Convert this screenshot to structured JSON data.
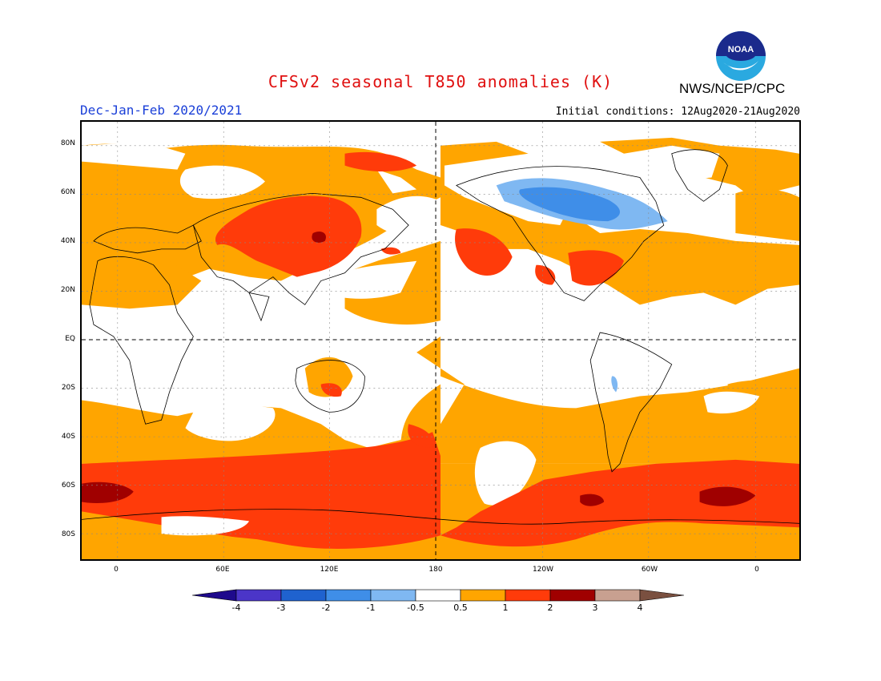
{
  "title": "CFSv2 seasonal T850 anomalies (K)",
  "agency": "NWS/NCEP/CPC",
  "logo_text": "NOAA",
  "season": "Dec-Jan-Feb 2020/2021",
  "initial_conditions": "Initial conditions: 12Aug2020-21Aug2020",
  "lat_labels": [
    "80N",
    "60N",
    "40N",
    "20N",
    "EQ",
    "20S",
    "40S",
    "60S",
    "80S"
  ],
  "lon_labels": [
    "0",
    "60E",
    "120E",
    "180",
    "120W",
    "60W",
    "0"
  ],
  "colorbar": {
    "labels": [
      "-4",
      "-3",
      "-2",
      "-1",
      "-0.5",
      "0.5",
      "1",
      "2",
      "3",
      "4"
    ],
    "colors": [
      "#1e0a8c",
      "#4b35c8",
      "#1f62cf",
      "#3f8ee8",
      "#7fb8f2",
      "#ffffff",
      "#ffa500",
      "#ff3b0a",
      "#a00000",
      "#c8a090",
      "#7a5040"
    ]
  },
  "field_colors": {
    "band_05_1": "#ffa500",
    "band_1_2": "#ff3b0a",
    "band_2_3": "#a00000",
    "band_m1_m05": "#7fb8f2",
    "band_m2_m1": "#3f8ee8"
  }
}
